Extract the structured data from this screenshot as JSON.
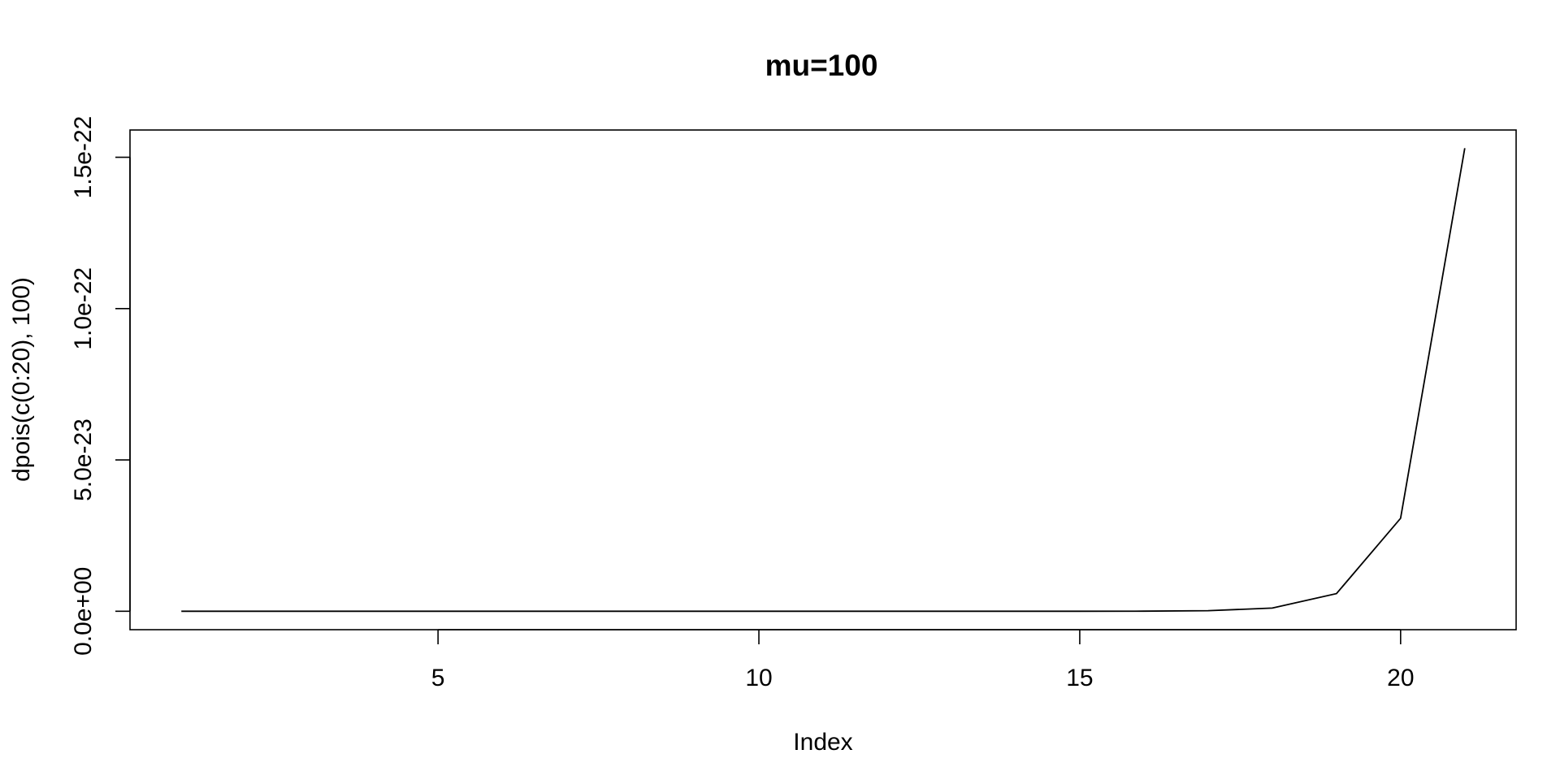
{
  "chart_data": {
    "type": "line",
    "title": "mu=100",
    "xlabel": "Index",
    "ylabel": "dpois(c(0:20), 100)",
    "xlim": [
      0.2,
      21.8
    ],
    "ylim": [
      -6.1e-24,
      1.59e-22
    ],
    "x_ticks": [
      5,
      10,
      15,
      20
    ],
    "x_tick_labels": [
      "5",
      "10",
      "15",
      "20"
    ],
    "y_ticks": [
      0,
      5e-23,
      1e-22,
      1.5e-22
    ],
    "y_tick_labels": [
      "0.0e+00",
      "5.0e-23",
      "1.0e-22",
      "1.5e-22"
    ],
    "grid": false,
    "legend": "none",
    "line_color": "#000000",
    "series": [
      {
        "x": [
          1,
          2,
          3,
          4,
          5,
          6,
          7,
          8,
          9,
          10,
          11,
          12,
          13,
          14,
          15,
          16,
          17,
          18,
          19,
          20,
          21
        ],
        "values": [
          3.72e-44,
          3.72e-42,
          1.86e-40,
          6.2e-39,
          1.55e-37,
          3.1e-36,
          5.17e-35,
          7.38e-34,
          9.23e-33,
          1.03e-31,
          1.03e-30,
          9.33e-30,
          7.78e-29,
          5.98e-28,
          4.27e-27,
          2.85e-26,
          1.78e-25,
          1.05e-24,
          5.83e-24,
          3.07e-23,
          1.53e-22
        ]
      }
    ]
  }
}
